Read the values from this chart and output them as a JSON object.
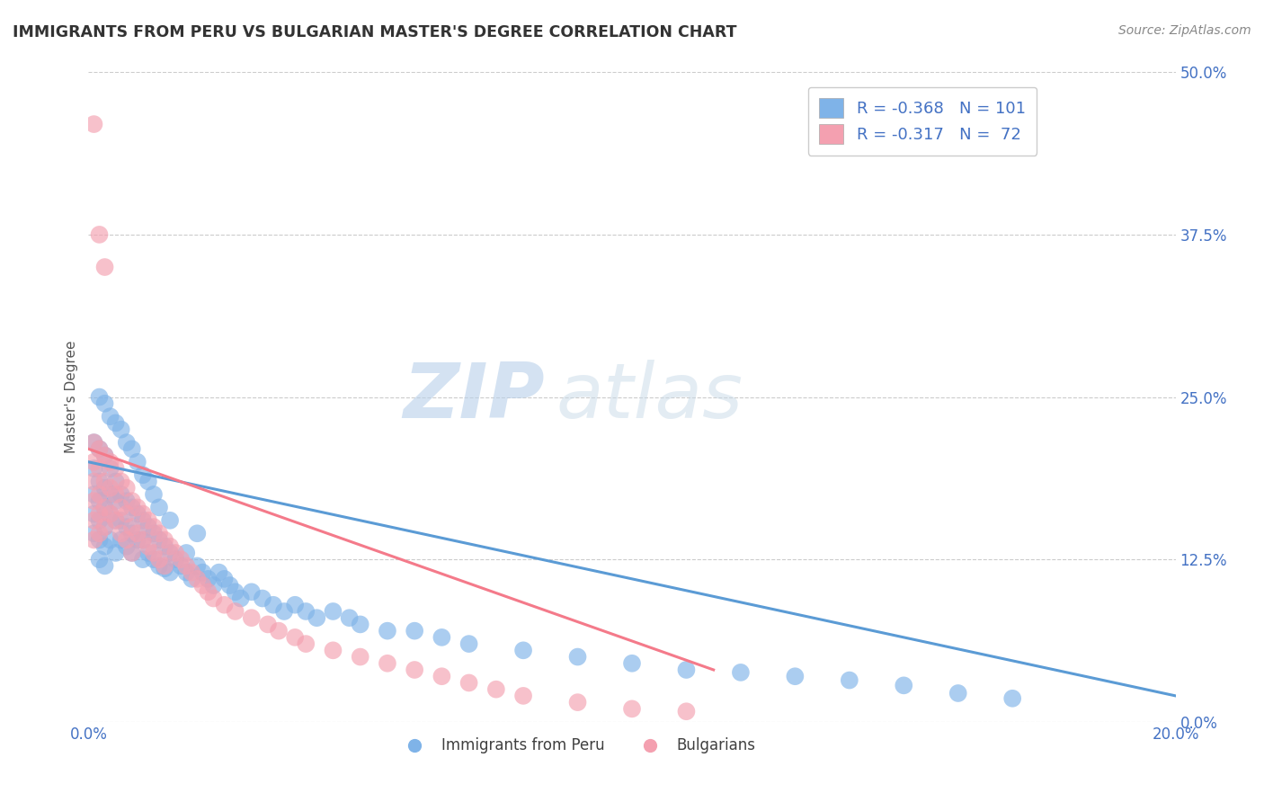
{
  "title": "IMMIGRANTS FROM PERU VS BULGARIAN MASTER'S DEGREE CORRELATION CHART",
  "source_text": "Source: ZipAtlas.com",
  "ylabel": "Master's Degree",
  "xlim": [
    0.0,
    0.2
  ],
  "ylim": [
    0.0,
    0.5
  ],
  "ytick_vals": [
    0.0,
    0.125,
    0.25,
    0.375,
    0.5
  ],
  "xtick_vals": [
    0.0,
    0.2
  ],
  "grid_color": "#cccccc",
  "background_color": "#ffffff",
  "blue_color": "#7fb3e8",
  "pink_color": "#f4a0b0",
  "blue_line_color": "#5b9bd5",
  "pink_line_color": "#f47a8a",
  "legend_text_color": "#4472c4",
  "title_color": "#333333",
  "ylabel_color": "#555555",
  "watermark_zip_color": "#b8d0ea",
  "watermark_atlas_color": "#c8dae8",
  "blue_scatter_x": [
    0.001,
    0.001,
    0.001,
    0.001,
    0.001,
    0.002,
    0.002,
    0.002,
    0.002,
    0.002,
    0.002,
    0.003,
    0.003,
    0.003,
    0.003,
    0.003,
    0.003,
    0.004,
    0.004,
    0.004,
    0.004,
    0.005,
    0.005,
    0.005,
    0.005,
    0.006,
    0.006,
    0.006,
    0.007,
    0.007,
    0.007,
    0.008,
    0.008,
    0.008,
    0.009,
    0.009,
    0.01,
    0.01,
    0.01,
    0.011,
    0.011,
    0.012,
    0.012,
    0.013,
    0.013,
    0.014,
    0.014,
    0.015,
    0.015,
    0.016,
    0.017,
    0.018,
    0.018,
    0.019,
    0.02,
    0.021,
    0.022,
    0.023,
    0.024,
    0.025,
    0.026,
    0.027,
    0.028,
    0.03,
    0.032,
    0.034,
    0.036,
    0.038,
    0.04,
    0.042,
    0.045,
    0.048,
    0.05,
    0.055,
    0.06,
    0.065,
    0.07,
    0.08,
    0.09,
    0.1,
    0.11,
    0.12,
    0.13,
    0.14,
    0.15,
    0.16,
    0.17,
    0.002,
    0.003,
    0.004,
    0.005,
    0.006,
    0.007,
    0.008,
    0.009,
    0.01,
    0.011,
    0.012,
    0.013,
    0.015,
    0.02
  ],
  "blue_scatter_y": [
    0.215,
    0.195,
    0.175,
    0.16,
    0.145,
    0.21,
    0.185,
    0.17,
    0.155,
    0.14,
    0.125,
    0.205,
    0.18,
    0.165,
    0.15,
    0.135,
    0.12,
    0.195,
    0.175,
    0.16,
    0.14,
    0.185,
    0.17,
    0.155,
    0.13,
    0.175,
    0.155,
    0.14,
    0.17,
    0.15,
    0.135,
    0.165,
    0.145,
    0.13,
    0.16,
    0.14,
    0.155,
    0.14,
    0.125,
    0.15,
    0.13,
    0.145,
    0.125,
    0.14,
    0.12,
    0.135,
    0.118,
    0.13,
    0.115,
    0.125,
    0.12,
    0.115,
    0.13,
    0.11,
    0.12,
    0.115,
    0.11,
    0.105,
    0.115,
    0.11,
    0.105,
    0.1,
    0.095,
    0.1,
    0.095,
    0.09,
    0.085,
    0.09,
    0.085,
    0.08,
    0.085,
    0.08,
    0.075,
    0.07,
    0.07,
    0.065,
    0.06,
    0.055,
    0.05,
    0.045,
    0.04,
    0.038,
    0.035,
    0.032,
    0.028,
    0.022,
    0.018,
    0.25,
    0.245,
    0.235,
    0.23,
    0.225,
    0.215,
    0.21,
    0.2,
    0.19,
    0.185,
    0.175,
    0.165,
    0.155,
    0.145
  ],
  "pink_scatter_x": [
    0.001,
    0.001,
    0.001,
    0.001,
    0.001,
    0.001,
    0.002,
    0.002,
    0.002,
    0.002,
    0.002,
    0.003,
    0.003,
    0.003,
    0.003,
    0.004,
    0.004,
    0.004,
    0.005,
    0.005,
    0.005,
    0.006,
    0.006,
    0.006,
    0.007,
    0.007,
    0.007,
    0.008,
    0.008,
    0.008,
    0.009,
    0.009,
    0.01,
    0.01,
    0.011,
    0.011,
    0.012,
    0.012,
    0.013,
    0.013,
    0.014,
    0.014,
    0.015,
    0.016,
    0.017,
    0.018,
    0.019,
    0.02,
    0.021,
    0.022,
    0.023,
    0.025,
    0.027,
    0.03,
    0.033,
    0.035,
    0.038,
    0.04,
    0.045,
    0.05,
    0.055,
    0.06,
    0.065,
    0.07,
    0.075,
    0.08,
    0.09,
    0.1,
    0.11,
    0.001,
    0.002,
    0.003
  ],
  "pink_scatter_y": [
    0.215,
    0.2,
    0.185,
    0.17,
    0.155,
    0.14,
    0.21,
    0.195,
    0.175,
    0.16,
    0.145,
    0.205,
    0.185,
    0.165,
    0.15,
    0.2,
    0.18,
    0.16,
    0.195,
    0.175,
    0.155,
    0.185,
    0.165,
    0.145,
    0.18,
    0.16,
    0.14,
    0.17,
    0.15,
    0.13,
    0.165,
    0.145,
    0.16,
    0.14,
    0.155,
    0.135,
    0.15,
    0.13,
    0.145,
    0.125,
    0.14,
    0.12,
    0.135,
    0.13,
    0.125,
    0.12,
    0.115,
    0.11,
    0.105,
    0.1,
    0.095,
    0.09,
    0.085,
    0.08,
    0.075,
    0.07,
    0.065,
    0.06,
    0.055,
    0.05,
    0.045,
    0.04,
    0.035,
    0.03,
    0.025,
    0.02,
    0.015,
    0.01,
    0.008,
    0.46,
    0.375,
    0.35
  ]
}
